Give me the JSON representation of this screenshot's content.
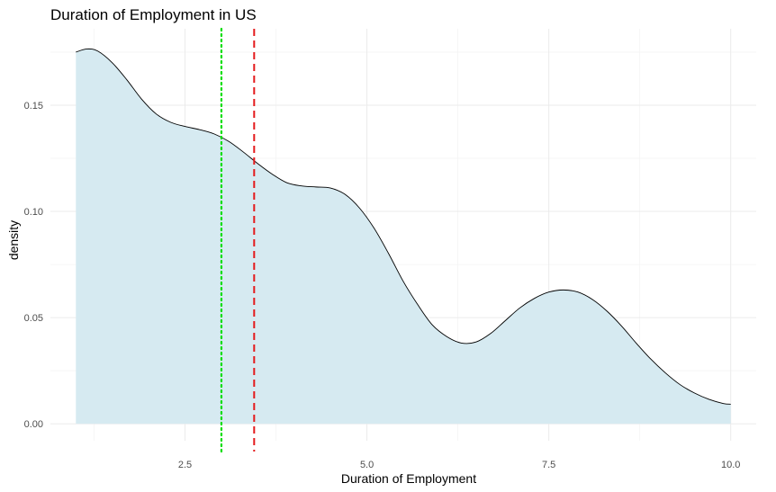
{
  "chart_data": {
    "type": "area",
    "title": "Duration of Employment in US",
    "xlabel": "Duration of Employment",
    "ylabel": "density",
    "xlim": [
      0.65,
      10.35
    ],
    "ylim": [
      -0.008,
      0.186
    ],
    "x_ticks": [
      2.5,
      5.0,
      7.5,
      10.0
    ],
    "x_tick_labels": [
      "2.5",
      "5.0",
      "7.5",
      "10.0"
    ],
    "y_ticks": [
      0.0,
      0.05,
      0.1,
      0.15
    ],
    "y_tick_labels": [
      "0.00",
      "0.05",
      "0.10",
      "0.15"
    ],
    "grid": true,
    "fill_color": "#d6eaf1",
    "line_color": "#000000",
    "series": [
      {
        "x": [
          1.0,
          1.15,
          1.3,
          1.5,
          1.7,
          1.9,
          2.1,
          2.3,
          2.5,
          2.7,
          2.9,
          3.1,
          3.3,
          3.5,
          3.7,
          3.9,
          4.1,
          4.3,
          4.5,
          4.7,
          4.9,
          5.1,
          5.3,
          5.5,
          5.7,
          5.9,
          6.1,
          6.3,
          6.5,
          6.7,
          6.9,
          7.1,
          7.3,
          7.5,
          7.7,
          7.9,
          8.1,
          8.3,
          8.5,
          8.7,
          8.9,
          9.1,
          9.3,
          9.5,
          9.7,
          9.9,
          10.0
        ],
        "y": [
          0.175,
          0.1765,
          0.1755,
          0.17,
          0.162,
          0.153,
          0.146,
          0.142,
          0.14,
          0.1385,
          0.1365,
          0.133,
          0.128,
          0.1225,
          0.1175,
          0.1135,
          0.112,
          0.1115,
          0.111,
          0.108,
          0.1015,
          0.092,
          0.08,
          0.067,
          0.056,
          0.0465,
          0.041,
          0.038,
          0.0385,
          0.0425,
          0.0485,
          0.0545,
          0.059,
          0.062,
          0.063,
          0.062,
          0.0585,
          0.053,
          0.046,
          0.038,
          0.0305,
          0.024,
          0.0185,
          0.0145,
          0.0115,
          0.0095,
          0.0092
        ]
      }
    ],
    "vlines": [
      {
        "x": 3.0,
        "color": "#00dd00",
        "style": "dotted"
      },
      {
        "x": 3.45,
        "color": "#e41a1c",
        "style": "dashed"
      }
    ]
  }
}
